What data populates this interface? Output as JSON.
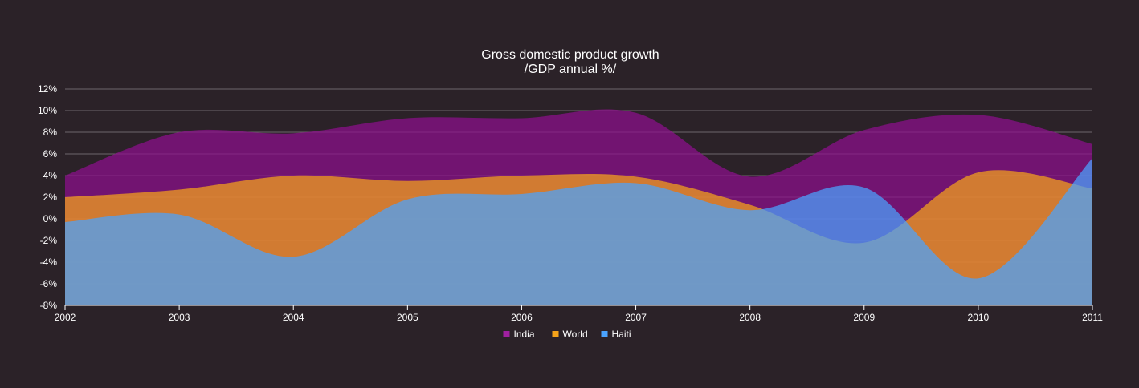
{
  "chart_data": {
    "type": "area",
    "title": "Gross domestic product growth",
    "subtitle": "/GDP annual %/",
    "xlabel": "",
    "ylabel": "",
    "x": [
      "2002",
      "2003",
      "2004",
      "2005",
      "2006",
      "2007",
      "2008",
      "2009",
      "2010",
      "2011"
    ],
    "y_ticks": [
      "12%",
      "10%",
      "8%",
      "6%",
      "4%",
      "2%",
      "0%",
      "-2%",
      "-4%",
      "-6%",
      "-8%"
    ],
    "ylim": [
      -8,
      12
    ],
    "grid": true,
    "legend_position": "bottom-center",
    "series": [
      {
        "name": "India",
        "color": "#8e0f8e",
        "values": [
          4.0,
          8.0,
          7.9,
          9.3,
          9.3,
          9.8,
          3.9,
          8.2,
          9.6,
          6.9
        ]
      },
      {
        "name": "World",
        "color": "#f5a31a",
        "values": [
          2.0,
          2.7,
          4.0,
          3.5,
          4.0,
          3.9,
          1.3,
          -2.2,
          4.3,
          2.8
        ]
      },
      {
        "name": "Haiti",
        "color": "#4aa3ff",
        "values": [
          -0.3,
          0.4,
          -3.5,
          1.8,
          2.3,
          3.3,
          0.8,
          2.9,
          -5.5,
          5.6
        ]
      }
    ]
  }
}
